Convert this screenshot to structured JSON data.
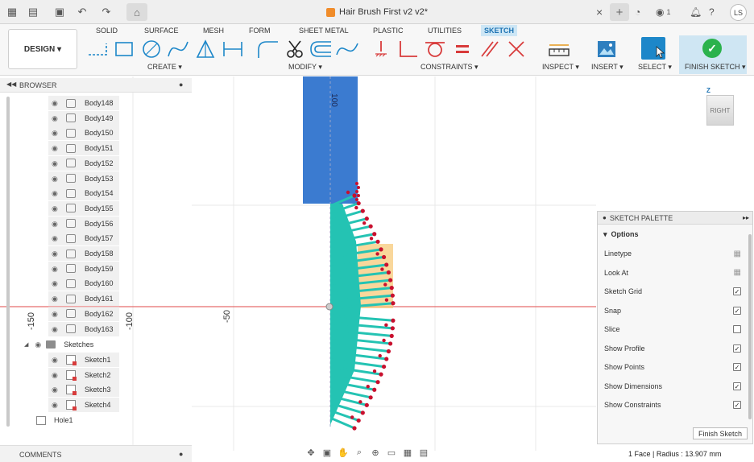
{
  "titlebar": {
    "doc_title": "Hair Brush First v2 v2*",
    "close_glyph": "×",
    "plus_glyph": "+",
    "job_count": "1",
    "user_initials": "LS"
  },
  "toolbar": {
    "design_label": "DESIGN ▾",
    "tabs": [
      "SOLID",
      "SURFACE",
      "MESH",
      "FORM",
      "SHEET METAL",
      "PLASTIC",
      "UTILITIES",
      "SKETCH"
    ],
    "active_tab": "SKETCH",
    "groups": {
      "create": "CREATE ▾",
      "modify": "MODIFY ▾",
      "constraints": "CONSTRAINTS ▾",
      "inspect": "INSPECT ▾",
      "insert": "INSERT ▾",
      "select": "SELECT ▾",
      "finish": "FINISH SKETCH ▾"
    }
  },
  "browser": {
    "title": "BROWSER",
    "bodies": [
      "Body148",
      "Body149",
      "Body150",
      "Body151",
      "Body152",
      "Body153",
      "Body154",
      "Body155",
      "Body156",
      "Body157",
      "Body158",
      "Body159",
      "Body160",
      "Body161",
      "Body162",
      "Body163"
    ],
    "sketches_folder": "Sketches",
    "sketches": [
      "Sketch1",
      "Sketch2",
      "Sketch3",
      "Sketch4"
    ],
    "hole": "Hole1"
  },
  "comments": {
    "title": "COMMENTS"
  },
  "viewport": {
    "ruler_labels": [
      "-150",
      "-100",
      "-50"
    ],
    "dimension_label": "100",
    "viewcube_label": "RIGHT",
    "axis_label": "Z"
  },
  "palette": {
    "title": "SKETCH PALETTE",
    "section": "Options",
    "options": [
      {
        "label": "Linetype",
        "checked": null
      },
      {
        "label": "Look At",
        "checked": null
      },
      {
        "label": "Sketch Grid",
        "checked": true
      },
      {
        "label": "Snap",
        "checked": true
      },
      {
        "label": "Slice",
        "checked": false
      },
      {
        "label": "Show Profile",
        "checked": true
      },
      {
        "label": "Show Points",
        "checked": true
      },
      {
        "label": "Show Dimensions",
        "checked": true
      },
      {
        "label": "Show Constraints",
        "checked": true
      }
    ],
    "finish_button": "Finish Sketch"
  },
  "status": {
    "text": "1 Face | Radius : 13.907 mm"
  },
  "colors": {
    "accent_blue": "#1d87c9",
    "sketch_teal": "#24c3b3",
    "body_blue": "#3b7bd0",
    "point_red": "#c8102e",
    "highlight_orange": "#f7c97a",
    "axis_red": "#e04a4a",
    "finish_green": "#2bb24c"
  }
}
